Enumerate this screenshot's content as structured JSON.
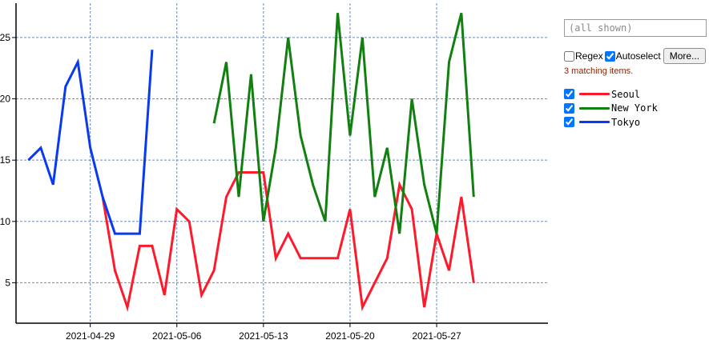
{
  "chart_data": {
    "type": "line",
    "x": [
      "2021-04-24",
      "2021-04-25",
      "2021-04-26",
      "2021-04-27",
      "2021-04-28",
      "2021-04-29",
      "2021-04-30",
      "2021-05-01",
      "2021-05-02",
      "2021-05-03",
      "2021-05-04",
      "2021-05-05",
      "2021-05-06",
      "2021-05-07",
      "2021-05-08",
      "2021-05-09",
      "2021-05-10",
      "2021-05-11",
      "2021-05-12",
      "2021-05-13",
      "2021-05-14",
      "2021-05-15",
      "2021-05-16",
      "2021-05-17",
      "2021-05-18",
      "2021-05-19",
      "2021-05-20",
      "2021-05-21",
      "2021-05-22",
      "2021-05-23",
      "2021-05-24",
      "2021-05-25",
      "2021-05-26",
      "2021-05-27",
      "2021-05-28",
      "2021-05-29",
      "2021-05-30",
      "2021-05-31",
      "2021-06-01"
    ],
    "series": [
      {
        "name": "Seoul",
        "color": "#ff1a2b",
        "values": [
          null,
          null,
          null,
          null,
          null,
          null,
          12,
          6,
          3,
          8,
          8,
          4,
          11,
          10,
          4,
          6,
          12,
          14,
          14,
          14,
          7,
          9,
          7,
          7,
          7,
          7,
          11,
          3,
          5,
          7,
          13,
          11,
          3,
          9,
          6,
          12,
          5,
          null,
          null
        ]
      },
      {
        "name": "New York",
        "color": "#118011",
        "values": [
          null,
          null,
          null,
          null,
          null,
          null,
          null,
          null,
          null,
          null,
          null,
          null,
          null,
          null,
          null,
          18,
          23,
          12,
          22,
          10,
          16,
          25,
          17,
          13,
          10,
          27,
          17,
          25,
          12,
          16,
          9,
          20,
          13,
          9,
          23,
          27,
          12,
          null,
          null
        ]
      },
      {
        "name": "Tokyo",
        "color": "#0a3af0",
        "values": [
          15,
          16,
          13,
          21,
          23,
          16,
          12,
          9,
          9,
          9,
          24,
          null,
          null,
          null,
          null,
          null,
          null,
          null,
          null,
          null,
          null,
          null,
          null,
          null,
          null,
          null,
          null,
          null,
          null,
          null,
          null,
          null,
          null,
          null,
          null,
          null,
          null,
          null,
          null
        ]
      }
    ],
    "x_ticks": [
      "2021-04-29",
      "2021-05-06",
      "2021-05-13",
      "2021-05-20",
      "2021-05-27"
    ],
    "y_ticks": [
      5,
      10,
      15,
      20,
      25
    ],
    "x_range": [
      "2021-04-23",
      "2021-06-05"
    ],
    "ylim": [
      1.7,
      27.8
    ],
    "grid": true
  },
  "controls": {
    "filter_placeholder": "(all shown)",
    "regex_label": "Regex",
    "regex_checked": false,
    "autoselect_label": "Autoselect",
    "autoselect_checked": true,
    "more_label": "More...",
    "match_text": "3 matching items."
  }
}
